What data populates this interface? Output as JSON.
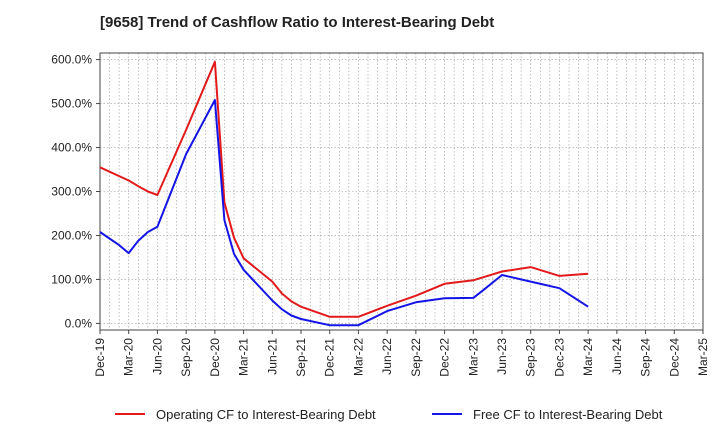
{
  "chart_data": {
    "type": "line",
    "title": "[9658]  Trend of Cashflow Ratio to Interest-Bearing Debt",
    "xlabel": "",
    "ylabel": "",
    "y_tick_labels": [
      "0.0%",
      "100.0%",
      "200.0%",
      "300.0%",
      "400.0%",
      "500.0%",
      "600.0%"
    ],
    "y_ticks": [
      0,
      100,
      200,
      300,
      400,
      500,
      600
    ],
    "ylim": [
      -15,
      615
    ],
    "x_tick_labels": [
      "Dec-19",
      "Mar-20",
      "Jun-20",
      "Sep-20",
      "Dec-20",
      "Mar-21",
      "Jun-21",
      "Sep-21",
      "Dec-21",
      "Mar-22",
      "Jun-22",
      "Sep-22",
      "Dec-22",
      "Mar-23",
      "Jun-23",
      "Sep-23",
      "Dec-23",
      "Mar-24",
      "Jun-24",
      "Sep-24",
      "Dec-24",
      "Mar-25"
    ],
    "x_range_months": [
      "Dec-19",
      "Mar-25"
    ],
    "grid": true,
    "legend_position": "bottom",
    "series": [
      {
        "name": "Operating CF to Interest-Bearing Debt",
        "color": "#e31a1c",
        "points": [
          {
            "x": "Dec-19",
            "y": 355
          },
          {
            "x": "Mar-20",
            "y": 325
          },
          {
            "x": "Apr-20",
            "y": 312
          },
          {
            "x": "May-20",
            "y": 300
          },
          {
            "x": "Jun-20",
            "y": 292
          },
          {
            "x": "Sep-20",
            "y": 440
          },
          {
            "x": "Dec-20",
            "y": 595
          },
          {
            "x": "Jan-21",
            "y": 275
          },
          {
            "x": "Feb-21",
            "y": 195
          },
          {
            "x": "Mar-21",
            "y": 148
          },
          {
            "x": "Jun-21",
            "y": 95
          },
          {
            "x": "Jul-21",
            "y": 68
          },
          {
            "x": "Aug-21",
            "y": 50
          },
          {
            "x": "Sep-21",
            "y": 38
          },
          {
            "x": "Dec-21",
            "y": 15
          },
          {
            "x": "Mar-22",
            "y": 15
          },
          {
            "x": "Jun-22",
            "y": 40
          },
          {
            "x": "Sep-22",
            "y": 63
          },
          {
            "x": "Dec-22",
            "y": 90
          },
          {
            "x": "Mar-23",
            "y": 98
          },
          {
            "x": "Jun-23",
            "y": 118
          },
          {
            "x": "Sep-23",
            "y": 128
          },
          {
            "x": "Dec-23",
            "y": 108
          },
          {
            "x": "Mar-24",
            "y": 113
          }
        ]
      },
      {
        "name": "Free CF to Interest-Bearing Debt",
        "color": "#1414e6",
        "points": [
          {
            "x": "Dec-19",
            "y": 208
          },
          {
            "x": "Feb-20",
            "y": 178
          },
          {
            "x": "Mar-20",
            "y": 160
          },
          {
            "x": "Apr-20",
            "y": 188
          },
          {
            "x": "May-20",
            "y": 208
          },
          {
            "x": "Jun-20",
            "y": 220
          },
          {
            "x": "Sep-20",
            "y": 385
          },
          {
            "x": "Dec-20",
            "y": 508
          },
          {
            "x": "Jan-21",
            "y": 235
          },
          {
            "x": "Feb-21",
            "y": 158
          },
          {
            "x": "Mar-21",
            "y": 122
          },
          {
            "x": "Jun-21",
            "y": 52
          },
          {
            "x": "Jul-21",
            "y": 32
          },
          {
            "x": "Aug-21",
            "y": 18
          },
          {
            "x": "Sep-21",
            "y": 10
          },
          {
            "x": "Dec-21",
            "y": -4
          },
          {
            "x": "Mar-22",
            "y": -4
          },
          {
            "x": "Jun-22",
            "y": 28
          },
          {
            "x": "Sep-22",
            "y": 48
          },
          {
            "x": "Dec-22",
            "y": 57
          },
          {
            "x": "Mar-23",
            "y": 58
          },
          {
            "x": "Apr-23",
            "y": 75
          },
          {
            "x": "Jun-23",
            "y": 110
          },
          {
            "x": "Sep-23",
            "y": 95
          },
          {
            "x": "Dec-23",
            "y": 80
          },
          {
            "x": "Mar-24",
            "y": 38
          }
        ]
      }
    ]
  }
}
